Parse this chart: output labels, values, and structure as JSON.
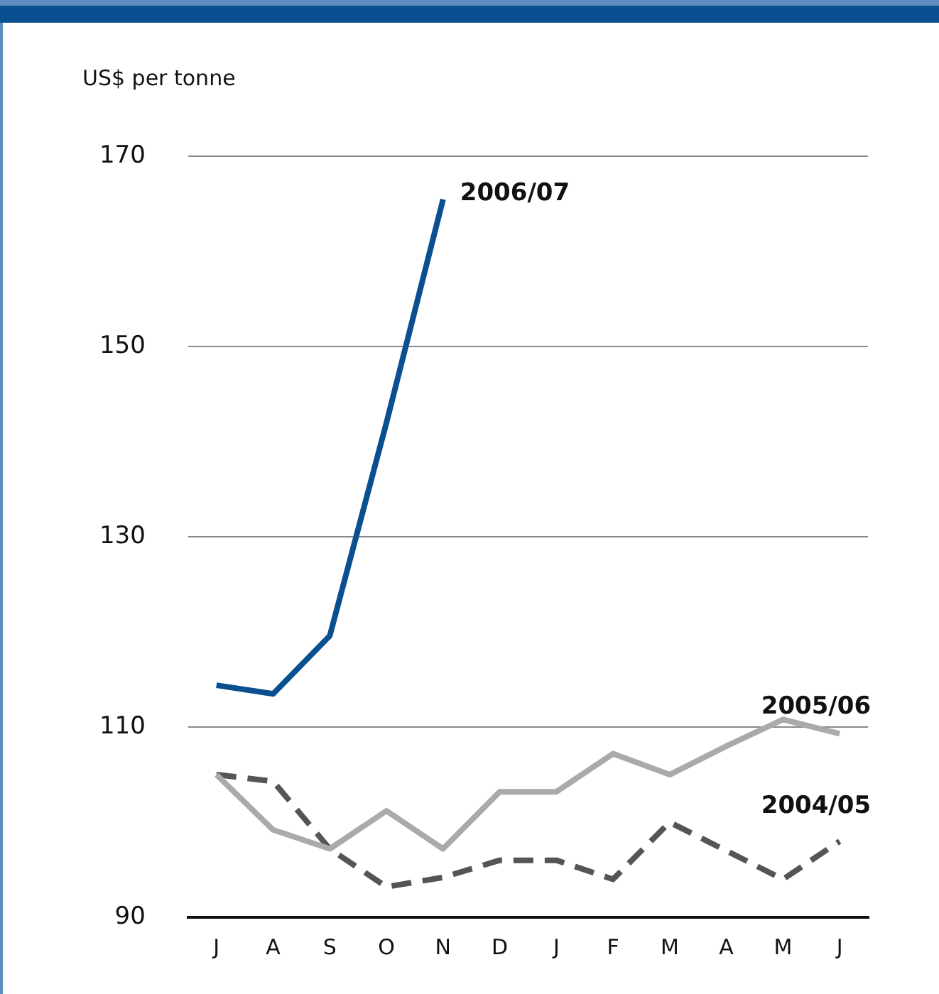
{
  "chart_data": {
    "type": "line",
    "ylabel": "US$ per tonne",
    "categories": [
      "J",
      "A",
      "S",
      "O",
      "N",
      "D",
      "J",
      "F",
      "M",
      "A",
      "M",
      "J"
    ],
    "ylim": [
      90,
      170
    ],
    "yticks": [
      90,
      110,
      130,
      150,
      170
    ],
    "grid": "y",
    "legend": false,
    "marker": "none",
    "series": [
      {
        "name": "2006/07",
        "color": "#0a4f8f",
        "line_style": "solid",
        "values": [
          114.4,
          113.5,
          119.6,
          142,
          165.5,
          null,
          null,
          null,
          null,
          null,
          null,
          null
        ]
      },
      {
        "name": "2005/06",
        "color": "#aaaaaa",
        "line_style": "solid",
        "values": [
          105,
          99.2,
          97.2,
          101.2,
          97.2,
          103.2,
          103.2,
          107.2,
          105,
          108,
          110.8,
          109.3
        ]
      },
      {
        "name": "2004/05",
        "color": "#555555",
        "line_style": "dashed",
        "values": [
          105,
          104.3,
          97.2,
          93.2,
          94.2,
          96,
          96,
          94,
          100,
          97,
          94,
          98
        ]
      }
    ]
  }
}
